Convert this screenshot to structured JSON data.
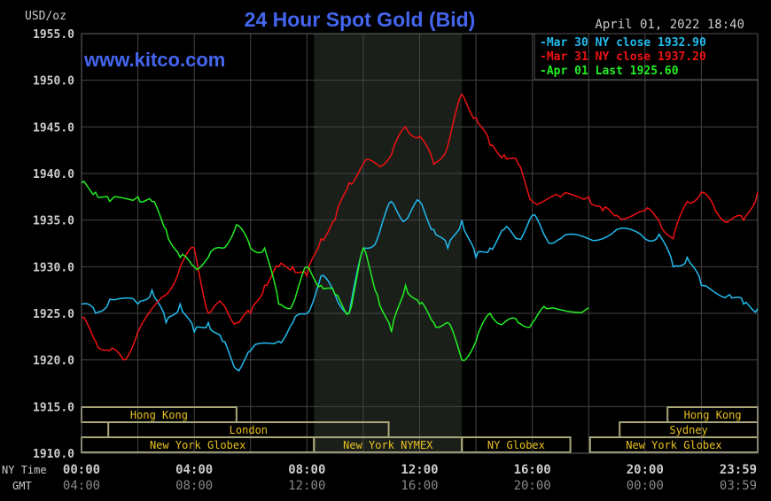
{
  "chart_data": {
    "type": "line",
    "title": "24 Hour Spot Gold (Bid)",
    "watermark": "www.kitco.com",
    "timestamp": "April 01, 2022 18:40",
    "ylabel": "USD/oz",
    "ylim": [
      1910,
      1955
    ],
    "yticks": [
      "1955.0",
      "1950.0",
      "1945.0",
      "1940.0",
      "1935.0",
      "1930.0",
      "1925.0",
      "1920.0",
      "1915.0",
      "1910.0"
    ],
    "xlim_hours": [
      0,
      24
    ],
    "x_row_labels": {
      "ny": "NY Time",
      "gmt": "GMT"
    },
    "xticks_ny": [
      "00:00",
      "04:00",
      "08:00",
      "12:00",
      "16:00",
      "20:00",
      "23:59"
    ],
    "xticks_gmt": [
      "04:00",
      "08:00",
      "12:00",
      "16:00",
      "20:00",
      "00:00",
      "03:59"
    ],
    "shaded_hours": [
      8.25,
      13.5
    ],
    "legend_position": "top-right",
    "series": [
      {
        "name": "Mar 30 NY close 1932.90",
        "color": "#22bbee",
        "x": [
          0,
          0.5,
          1,
          2,
          2.5,
          3,
          3.5,
          4,
          4.5,
          5,
          5.5,
          6,
          7,
          7.5,
          8,
          8.5,
          9,
          9.5,
          10,
          10.5,
          11,
          11.5,
          12,
          12.5,
          13,
          13.5,
          14,
          14.5,
          15,
          15.5,
          16,
          16.5,
          17,
          18,
          19,
          20,
          20.5,
          21,
          21.5,
          22,
          23,
          23.5,
          24
        ],
        "y": [
          1926,
          1925,
          1926.5,
          1926,
          1927.5,
          1924,
          1926,
          1923,
          1924,
          1922,
          1919,
          1921,
          1922,
          1924,
          1925,
          1929,
          1927,
          1925,
          1932,
          1933,
          1937,
          1935,
          1937,
          1934,
          1932,
          1935,
          1931,
          1932,
          1934,
          1933,
          1935.5,
          1933,
          1933,
          1933,
          1934,
          1933,
          1933.5,
          1930,
          1931,
          1928,
          1927,
          1926,
          1925.5
        ]
      },
      {
        "name": "Mar 31 NY close 1937.20",
        "color": "#ee1111",
        "x": [
          0,
          0.5,
          1,
          1.5,
          2,
          3,
          3.5,
          4,
          4.5,
          5,
          5.5,
          6,
          6.5,
          7,
          7.5,
          8,
          8.5,
          9,
          9.5,
          10,
          10.5,
          11,
          11.5,
          12,
          12.5,
          13,
          13.5,
          14,
          14.5,
          15,
          15.5,
          16,
          17,
          18,
          18.5,
          19,
          20,
          20.5,
          21,
          21.5,
          22,
          22.5,
          23,
          23.5,
          24
        ],
        "y": [
          1924.5,
          1922,
          1921,
          1920,
          1923,
          1927,
          1930,
          1932,
          1925,
          1926,
          1924,
          1925,
          1928,
          1930,
          1930,
          1929,
          1933,
          1935,
          1939,
          1941,
          1941,
          1942,
          1945,
          1944,
          1941,
          1943,
          1948.5,
          1946,
          1943,
          1942,
          1941,
          1937,
          1937.5,
          1937.5,
          1936,
          1935.5,
          1936,
          1935,
          1933,
          1937,
          1938,
          1936,
          1935,
          1935,
          1938
        ]
      },
      {
        "name": "Apr 01 Last 1925.60",
        "color": "#22ee22",
        "x": [
          0,
          0.5,
          1,
          2,
          2.5,
          3,
          3.5,
          4,
          4.5,
          5,
          5.5,
          6,
          6.5,
          7,
          7.5,
          8,
          8.5,
          9,
          9.5,
          10,
          10.5,
          11,
          11.5,
          12,
          12.5,
          13,
          13.5,
          14,
          14.5,
          15,
          15.5,
          16,
          16.5,
          18
        ],
        "y": [
          1939,
          1938,
          1937,
          1937.5,
          1937,
          1934,
          1931,
          1930,
          1931,
          1932,
          1934.5,
          1932,
          1932,
          1926,
          1926,
          1930,
          1928,
          1927,
          1925,
          1932,
          1927,
          1923,
          1928,
          1926,
          1924,
          1924,
          1920,
          1922,
          1925,
          1924,
          1924,
          1924,
          1925.5,
          1925.6
        ]
      }
    ],
    "sessions": [
      {
        "label": "Hong Kong",
        "row": 0,
        "start": 0,
        "end": 5.5
      },
      {
        "label": "London",
        "row": 1,
        "start": 0.95,
        "end": 10.9
      },
      {
        "label": "New York Globex",
        "row": 2,
        "start": 0,
        "end": 8.25
      },
      {
        "label": "New York NYMEX",
        "row": 2,
        "start": 8.25,
        "end": 13.5
      },
      {
        "label": "NY Globex",
        "row": 2,
        "start": 13.5,
        "end": 17.35
      },
      {
        "label": "Hong Kong",
        "row": 0,
        "start": 20.8,
        "end": 24
      },
      {
        "label": "Sydney",
        "row": 1,
        "start": 19.1,
        "end": 24
      },
      {
        "label": "New York Globex",
        "row": 2,
        "start": 18.05,
        "end": 24
      }
    ]
  }
}
